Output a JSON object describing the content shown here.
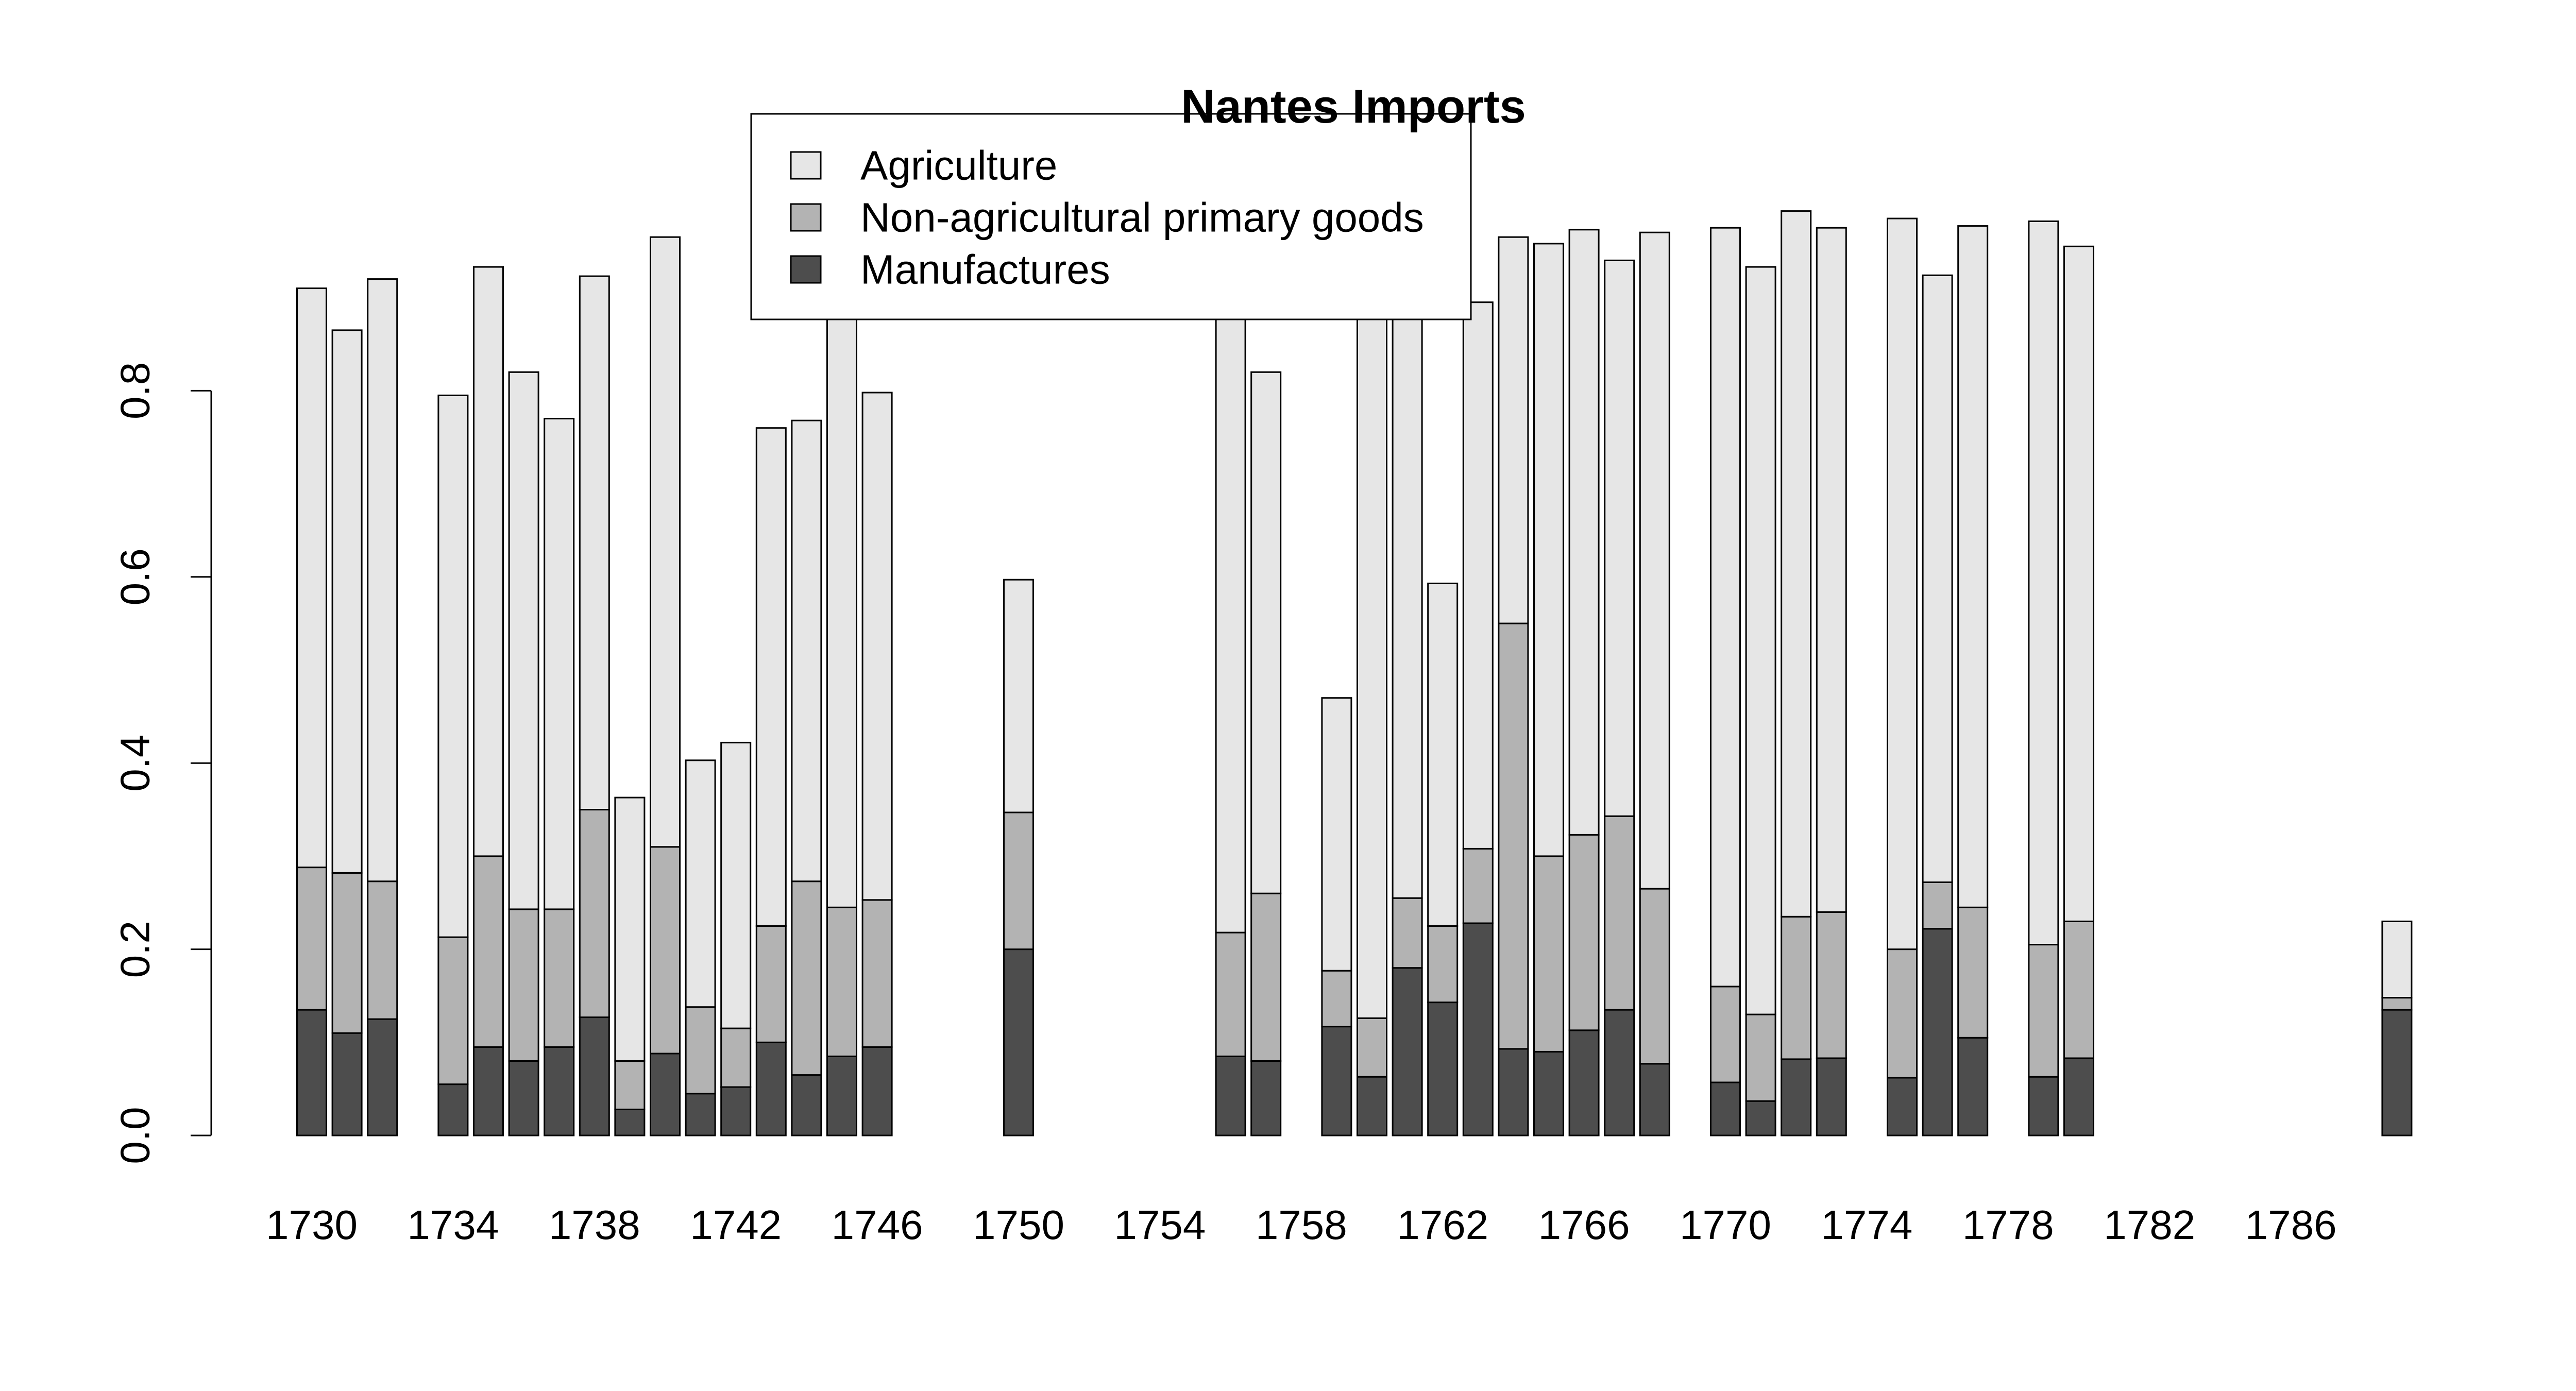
{
  "chart_data": {
    "type": "bar",
    "stacked": true,
    "title": "Nantes Imports",
    "xlabel": "",
    "ylabel": "",
    "ylim": [
      0,
      1.0
    ],
    "y_ticks": [
      "0.0",
      "0.2",
      "0.4",
      "0.6",
      "0.8"
    ],
    "x_tick_labels": [
      "1730",
      "1734",
      "1738",
      "1742",
      "1746",
      "1750",
      "1754",
      "1758",
      "1762",
      "1766",
      "1770",
      "1774",
      "1778",
      "1782",
      "1786"
    ],
    "legend_position": "top-center",
    "grid": false,
    "categories": [
      1730,
      1731,
      1732,
      1733,
      1734,
      1735,
      1736,
      1737,
      1738,
      1739,
      1740,
      1741,
      1742,
      1743,
      1744,
      1745,
      1746,
      1747,
      1748,
      1749,
      1750,
      1751,
      1752,
      1753,
      1754,
      1755,
      1756,
      1757,
      1758,
      1759,
      1760,
      1761,
      1762,
      1763,
      1764,
      1765,
      1766,
      1767,
      1768,
      1769,
      1770,
      1771,
      1772,
      1773,
      1774,
      1775,
      1776,
      1777,
      1778,
      1779,
      1780,
      1781,
      1782,
      1783,
      1784,
      1785,
      1786,
      1787,
      1788,
      1789
    ],
    "series": [
      {
        "name": "Manufactures",
        "color": "#4d4d4d",
        "values": [
          0.135,
          0.11,
          0.125,
          null,
          0.055,
          0.095,
          0.08,
          0.095,
          0.127,
          0.028,
          0.088,
          0.045,
          0.052,
          0.1,
          0.065,
          0.085,
          0.095,
          null,
          null,
          null,
          0.2,
          null,
          null,
          null,
          null,
          null,
          0.085,
          0.08,
          null,
          0.117,
          0.063,
          0.18,
          0.143,
          0.228,
          0.093,
          0.09,
          0.113,
          0.135,
          0.077,
          null,
          0.057,
          0.037,
          0.082,
          0.083,
          null,
          0.062,
          0.222,
          0.105,
          null,
          0.063,
          0.083,
          null,
          null,
          null,
          null,
          null,
          null,
          null,
          null,
          0.135
        ]
      },
      {
        "name": "Non-agricultural primary goods",
        "color": "#b3b3b3",
        "values": [
          0.153,
          0.172,
          0.148,
          null,
          0.158,
          0.205,
          0.163,
          0.148,
          0.223,
          0.052,
          0.222,
          0.093,
          0.063,
          0.125,
          0.208,
          0.16,
          0.158,
          null,
          null,
          null,
          0.147,
          null,
          null,
          null,
          null,
          null,
          0.133,
          0.18,
          null,
          0.06,
          0.063,
          0.075,
          0.082,
          0.08,
          0.457,
          0.21,
          0.21,
          0.208,
          0.188,
          null,
          0.103,
          0.093,
          0.153,
          0.157,
          null,
          0.138,
          0.05,
          0.14,
          null,
          0.142,
          0.147,
          null,
          null,
          null,
          null,
          null,
          null,
          null,
          null,
          0.013
        ]
      },
      {
        "name": "Agriculture",
        "color": "#e6e6e6",
        "values": [
          0.622,
          0.583,
          0.647,
          null,
          0.582,
          0.633,
          0.577,
          0.527,
          0.573,
          0.283,
          0.655,
          0.265,
          0.307,
          0.535,
          0.495,
          0.655,
          0.545,
          null,
          null,
          null,
          0.25,
          null,
          null,
          null,
          null,
          null,
          0.68,
          0.56,
          null,
          0.293,
          0.775,
          0.643,
          0.368,
          0.587,
          0.415,
          0.658,
          0.65,
          0.597,
          0.705,
          null,
          0.815,
          0.803,
          0.758,
          0.735,
          null,
          0.785,
          0.652,
          0.732,
          null,
          0.777,
          0.725,
          null,
          null,
          null,
          null,
          null,
          null,
          null,
          null,
          0.082
        ]
      }
    ]
  }
}
